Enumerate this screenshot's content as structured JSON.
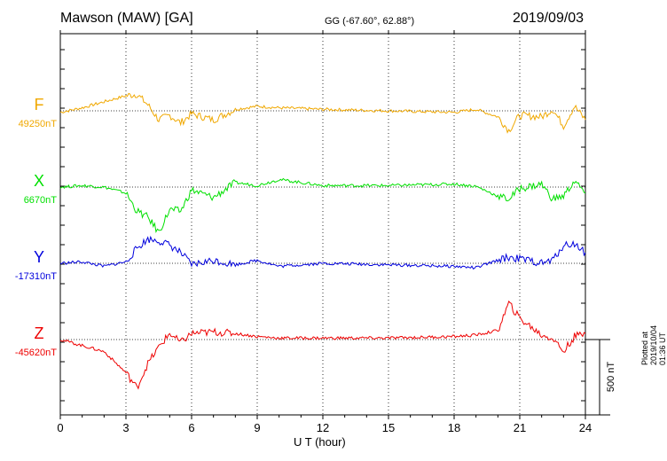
{
  "header": {
    "station": "Mawson (MAW)  [GA]",
    "coords": "GG (-67.60°,  62.88°)",
    "date": "2019/09/03"
  },
  "footer": {
    "xlabel": "U T (hour)",
    "plotted": "Plotted at 2019/10/04 01:36 UT"
  },
  "scale_label": "500 nT",
  "colors": {
    "F": "#f0a800",
    "X": "#00e000",
    "Y": "#0000dd",
    "Z": "#ee0000"
  },
  "chart_data": {
    "type": "line",
    "xlabel": "U T (hour)",
    "x_ticks": [
      "0",
      "3",
      "6",
      "9",
      "12",
      "15",
      "18",
      "21",
      "24"
    ],
    "xlim": [
      0,
      24
    ],
    "grid": "dotted, 3-hour vertical lines",
    "scale_bar_nT": 500,
    "series": [
      {
        "name": "F",
        "baseline": "49250nT",
        "x": [
          0,
          1,
          2,
          3,
          3.5,
          4,
          4.5,
          5,
          5.5,
          6,
          7,
          8,
          9,
          10,
          12,
          15,
          18,
          19,
          20,
          20.5,
          21,
          22,
          22.5,
          23,
          23.5,
          24
        ],
        "values": [
          -10,
          20,
          60,
          100,
          110,
          40,
          -60,
          -30,
          -80,
          -20,
          -60,
          10,
          30,
          20,
          10,
          0,
          -10,
          10,
          -40,
          -130,
          -30,
          -40,
          10,
          -100,
          30,
          -60
        ]
      },
      {
        "name": "X",
        "baseline": "6670nT",
        "x": [
          0,
          1,
          2,
          3,
          3.5,
          4,
          4.5,
          5,
          5.5,
          6,
          7,
          8,
          9,
          10,
          12,
          15,
          18,
          19,
          20,
          20.5,
          21,
          22,
          22.5,
          23,
          23.5,
          24
        ],
        "values": [
          0,
          10,
          0,
          -40,
          -160,
          -200,
          -300,
          -150,
          -160,
          -20,
          -70,
          30,
          10,
          50,
          10,
          10,
          20,
          5,
          -60,
          -80,
          -10,
          20,
          -80,
          -60,
          40,
          -40
        ]
      },
      {
        "name": "Y",
        "baseline": "-17310nT",
        "x": [
          0,
          1,
          2,
          3,
          3.5,
          4,
          4.5,
          5,
          5.5,
          6,
          7,
          8,
          9,
          10,
          12,
          15,
          18,
          19,
          20,
          20.5,
          21,
          22,
          22.5,
          23,
          23.5,
          24
        ],
        "values": [
          0,
          10,
          -20,
          10,
          100,
          160,
          150,
          120,
          70,
          -10,
          20,
          -10,
          20,
          -20,
          0,
          -10,
          -20,
          -30,
          20,
          40,
          30,
          0,
          20,
          120,
          130,
          70
        ]
      },
      {
        "name": "Z",
        "baseline": "-45620nT",
        "x": [
          0,
          1,
          2,
          3,
          3.5,
          4,
          4.5,
          5,
          5.5,
          6,
          7,
          8,
          9,
          10,
          12,
          15,
          18,
          19,
          20,
          20.5,
          21,
          22,
          22.5,
          23,
          23.5,
          24
        ],
        "values": [
          0,
          -40,
          -80,
          -220,
          -320,
          -160,
          -50,
          40,
          -20,
          40,
          50,
          40,
          20,
          10,
          10,
          10,
          20,
          30,
          60,
          240,
          140,
          30,
          10,
          -80,
          20,
          40
        ]
      }
    ]
  }
}
